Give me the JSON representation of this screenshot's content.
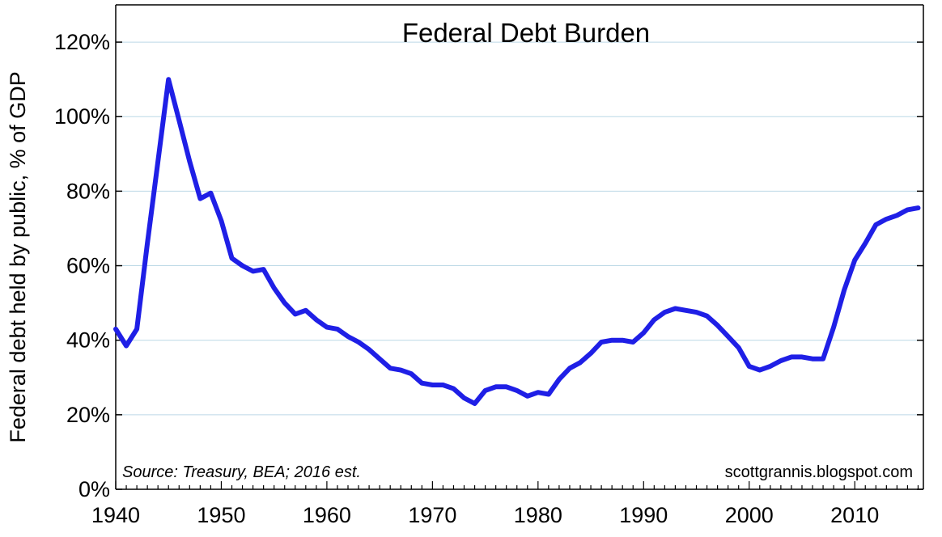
{
  "chart_data": {
    "type": "line",
    "title": "Federal Debt Burden",
    "ylabel": "Federal debt held by public, % of GDP",
    "xlabel": "",
    "source_note": "Source: Treasury, BEA; 2016 est.",
    "credit": "scottgrannis.blogspot.com",
    "xlim": [
      1940,
      2016.5
    ],
    "ylim": [
      0,
      130
    ],
    "x_ticks": [
      1940,
      1950,
      1960,
      1970,
      1980,
      1990,
      2000,
      2010
    ],
    "x_tick_labels": [
      "1940",
      "1950",
      "1960",
      "1970",
      "1980",
      "1990",
      "2000",
      "2010"
    ],
    "y_ticks": [
      0,
      20,
      40,
      60,
      80,
      100,
      120
    ],
    "y_tick_labels": [
      "0%",
      "20%",
      "40%",
      "60%",
      "80%",
      "100%",
      "120%"
    ],
    "grid": true,
    "colors": {
      "line": "#1f1fe6",
      "grid": "#bcd8e6",
      "axis": "#000000"
    },
    "series": [
      {
        "x": [
          1940,
          1941,
          1942,
          1943,
          1944,
          1945,
          1946,
          1947,
          1948,
          1949,
          1950,
          1951,
          1952,
          1953,
          1954,
          1955,
          1956,
          1957,
          1958,
          1959,
          1960,
          1961,
          1962,
          1963,
          1964,
          1965,
          1966,
          1967,
          1968,
          1969,
          1970,
          1971,
          1972,
          1973,
          1974,
          1975,
          1976,
          1977,
          1978,
          1979,
          1980,
          1981,
          1982,
          1983,
          1984,
          1985,
          1986,
          1987,
          1988,
          1989,
          1990,
          1991,
          1992,
          1993,
          1994,
          1995,
          1996,
          1997,
          1998,
          1999,
          2000,
          2001,
          2002,
          2003,
          2004,
          2005,
          2006,
          2007,
          2008,
          2009,
          2010,
          2011,
          2012,
          2013,
          2014,
          2015,
          2016
        ],
        "values": [
          43.0,
          38.5,
          43.0,
          66.0,
          88.0,
          110.0,
          99.0,
          88.0,
          78.0,
          79.5,
          72.0,
          62.0,
          60.0,
          58.5,
          59.0,
          54.0,
          50.0,
          47.0,
          48.0,
          45.5,
          43.5,
          43.0,
          41.0,
          39.5,
          37.5,
          35.0,
          32.5,
          32.0,
          31.0,
          28.5,
          28.0,
          28.0,
          27.0,
          24.5,
          23.0,
          26.5,
          27.5,
          27.5,
          26.5,
          25.0,
          26.0,
          25.5,
          29.5,
          32.5,
          34.0,
          36.5,
          39.5,
          40.0,
          40.0,
          39.5,
          42.0,
          45.5,
          47.5,
          48.5,
          48.0,
          47.5,
          46.5,
          44.0,
          41.0,
          38.0,
          33.0,
          32.0,
          33.0,
          34.5,
          35.5,
          35.5,
          35.0,
          35.0,
          43.5,
          53.5,
          61.5,
          66.0,
          71.0,
          72.5,
          73.5,
          75.0,
          75.5
        ]
      }
    ]
  }
}
